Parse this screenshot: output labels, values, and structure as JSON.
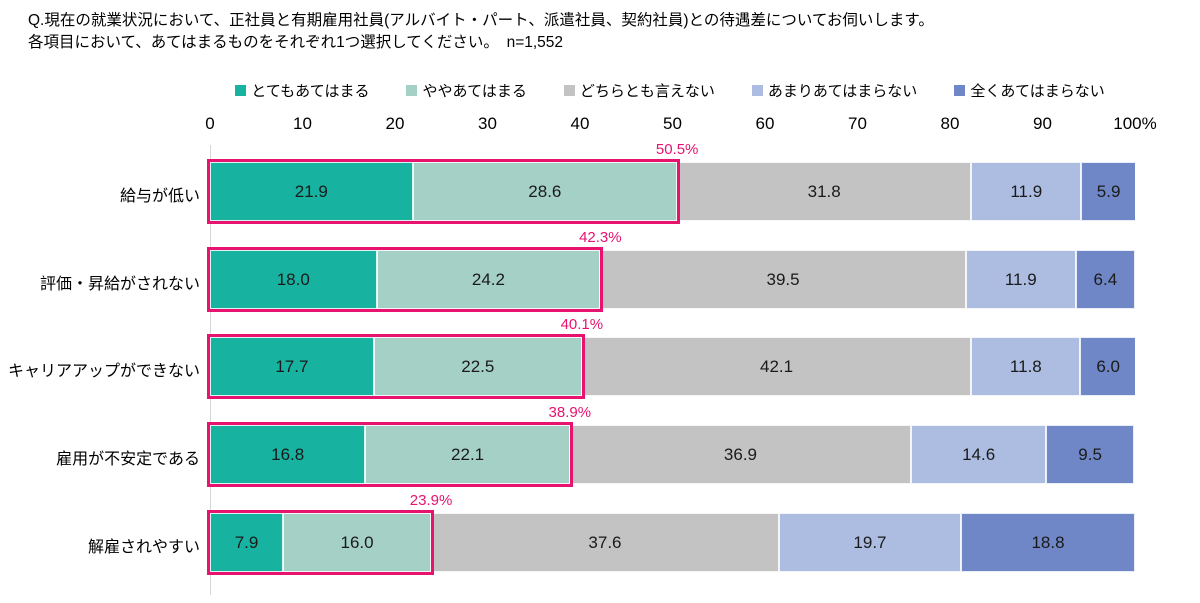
{
  "header": {
    "title_line1": "Q.現在の就業状況において、正社員と有期雇用社員(アルバイト・パート、派遣社員、契約社員)との待遇差についてお伺いします。",
    "title_line2": "各項目において、あてはまるものをそれぞれ1つ選択してください。　n=1,552"
  },
  "chart_data": {
    "type": "bar",
    "variant": "horizontal-stacked",
    "title": "Q.現在の就業状況において、正社員と有期雇用社員(アルバイト・パート、派遣社員、契約社員)との待遇差についてお伺いします。",
    "subtitle": "各項目において、あてはまるものをそれぞれ1つ選択してください。",
    "sample_size_label": "n=1,552",
    "categories": [
      "給与が低い",
      "評価・昇給がされない",
      "キャリアアップができない",
      "雇用が不安定である",
      "解雇されやすい"
    ],
    "series": [
      {
        "name": "とてもあてはまる",
        "color": "#17B2A0",
        "values": [
          21.9,
          18.0,
          17.7,
          16.8,
          7.9
        ]
      },
      {
        "name": "ややあてはまる",
        "color": "#A5D0C5",
        "values": [
          28.6,
          24.2,
          22.5,
          22.1,
          16.0
        ]
      },
      {
        "name": "どちらとも言えない",
        "color": "#C3C3C3",
        "values": [
          31.8,
          39.5,
          42.1,
          36.9,
          37.6
        ]
      },
      {
        "name": "あまりあてはまらない",
        "color": "#ACBDE1",
        "values": [
          11.9,
          11.9,
          11.8,
          14.6,
          19.7
        ]
      },
      {
        "name": "全くあてはまらない",
        "color": "#6F87C7",
        "values": [
          5.9,
          6.4,
          6.0,
          9.5,
          18.8
        ]
      }
    ],
    "highlight_sum_labels": [
      "50.5%",
      "42.3%",
      "40.1%",
      "38.9%",
      "23.9%"
    ],
    "highlight_color": "#E7136F",
    "x_ticks": [
      "0",
      "10",
      "20",
      "30",
      "40",
      "50",
      "60",
      "70",
      "80",
      "90",
      "100%"
    ],
    "xlim": [
      0,
      100
    ],
    "legend_position": "top",
    "grid": "off"
  }
}
